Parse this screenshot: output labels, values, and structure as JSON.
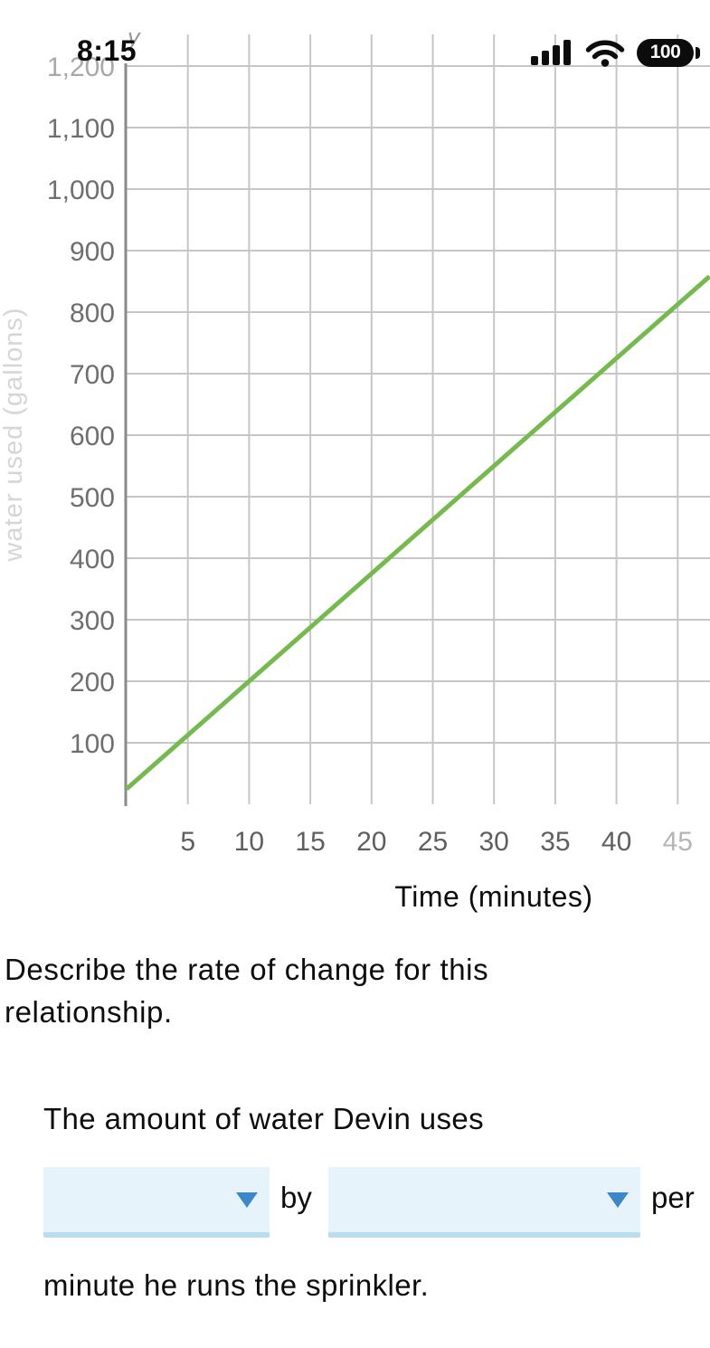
{
  "status_bar": {
    "time": "8:15",
    "battery_level": "100",
    "icons": [
      "cellular-signal-icon",
      "wifi-icon",
      "battery-icon"
    ]
  },
  "chart_data": {
    "type": "line",
    "title": "",
    "xlabel": "Time (minutes)",
    "ylabel": "water used (gallons)",
    "y_axis_symbol": "y",
    "x_ticks": [
      {
        "value": 5,
        "label": "5"
      },
      {
        "value": 10,
        "label": "10"
      },
      {
        "value": 15,
        "label": "15"
      },
      {
        "value": 20,
        "label": "20"
      },
      {
        "value": 25,
        "label": "25"
      },
      {
        "value": 30,
        "label": "30"
      },
      {
        "value": 35,
        "label": "35"
      },
      {
        "value": 40,
        "label": "40"
      },
      {
        "value": 45,
        "label": "45"
      }
    ],
    "y_ticks": [
      {
        "value": 100,
        "label": "100"
      },
      {
        "value": 200,
        "label": "200"
      },
      {
        "value": 300,
        "label": "300"
      },
      {
        "value": 400,
        "label": "400"
      },
      {
        "value": 500,
        "label": "500"
      },
      {
        "value": 600,
        "label": "600"
      },
      {
        "value": 700,
        "label": "700"
      },
      {
        "value": 800,
        "label": "800"
      },
      {
        "value": 900,
        "label": "900"
      },
      {
        "value": 1000,
        "label": "1,000"
      },
      {
        "value": 1100,
        "label": "1,100"
      },
      {
        "value": 1200,
        "label": "1,200"
      }
    ],
    "xlim": [
      0,
      47.6
    ],
    "ylim": [
      0,
      1200
    ],
    "grid": true,
    "legend": false,
    "series": [
      {
        "name": "water used",
        "color": "#76ba4f",
        "points": [
          [
            0,
            25
          ],
          [
            10,
            200
          ],
          [
            20,
            375
          ],
          [
            30,
            550
          ],
          [
            40,
            725
          ],
          [
            47.6,
            858
          ]
        ]
      }
    ],
    "slope_gallons_per_minute": 17.5
  },
  "question": {
    "prompt_lines": [
      "Describe the rate of change for this",
      "relationship."
    ]
  },
  "answer": {
    "lead_text": "The amount of water Devin uses",
    "dropdown1_value": "",
    "between_text": "by",
    "dropdown2_value": "",
    "after_text": "per",
    "closing_text": "minute he runs the sprinkler."
  },
  "colors": {
    "line_green": "#76ba4f",
    "dropdown_fill": "#e7f3fb",
    "dropdown_border": "#b9ddef",
    "dropdown_arrow_blue": "#3d87c9",
    "grid_gray": "#c6c6c6"
  }
}
